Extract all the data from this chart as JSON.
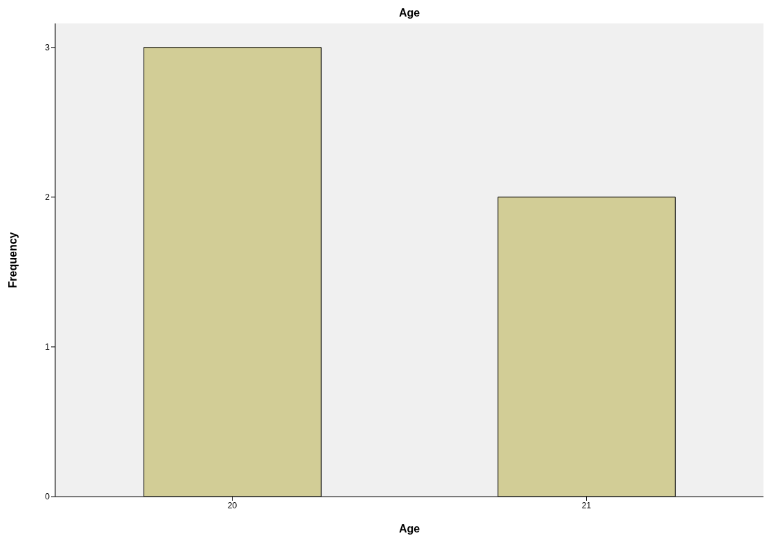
{
  "chart_data": {
    "type": "bar",
    "title": "Age",
    "xlabel": "Age",
    "ylabel": "Frequency",
    "categories": [
      "20",
      "21"
    ],
    "values": [
      3,
      2
    ],
    "color": "#d2cd96",
    "ylim": [
      0,
      3.16
    ],
    "yticks": [
      0,
      1,
      2,
      3
    ],
    "grid": false,
    "legend": false
  }
}
